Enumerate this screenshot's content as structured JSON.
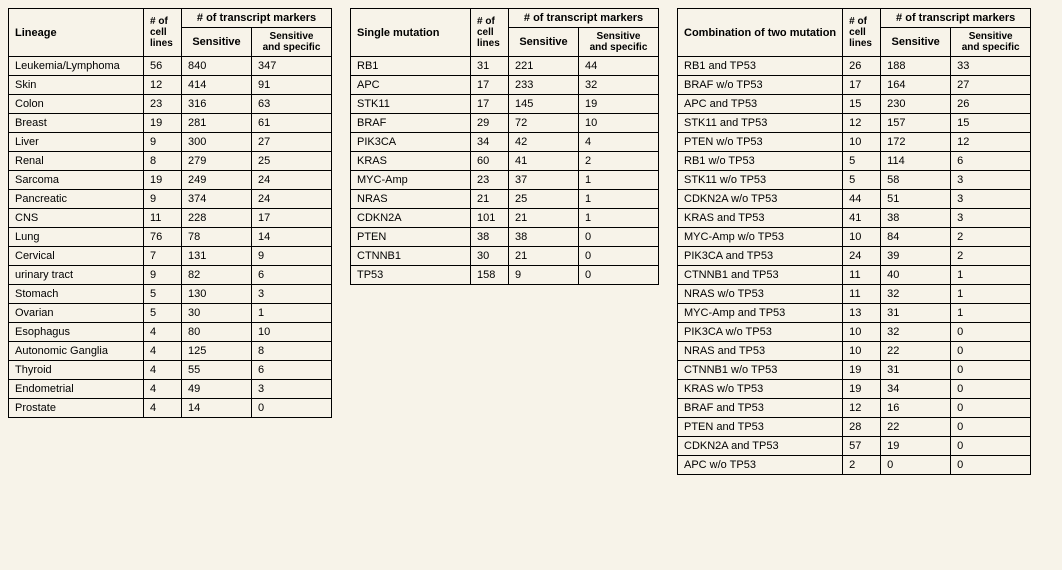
{
  "table1": {
    "header": {
      "col1": "Lineage",
      "col2": "# of\ncell\nlines",
      "markers": "# of transcript markers",
      "sens": "Sensitive",
      "sens_spec": "Sensitive\nand specific"
    },
    "rows": [
      {
        "n": "Leukemia/Lymphoma",
        "c": "56",
        "s": "840",
        "ss": "347"
      },
      {
        "n": "Skin",
        "c": "12",
        "s": "414",
        "ss": "91"
      },
      {
        "n": "Colon",
        "c": "23",
        "s": "316",
        "ss": "63"
      },
      {
        "n": "Breast",
        "c": "19",
        "s": "281",
        "ss": "61"
      },
      {
        "n": "Liver",
        "c": "9",
        "s": "300",
        "ss": "27"
      },
      {
        "n": "Renal",
        "c": "8",
        "s": "279",
        "ss": "25"
      },
      {
        "n": "Sarcoma",
        "c": "19",
        "s": "249",
        "ss": "24"
      },
      {
        "n": "Pancreatic",
        "c": "9",
        "s": "374",
        "ss": "24"
      },
      {
        "n": "CNS",
        "c": "11",
        "s": "228",
        "ss": "17"
      },
      {
        "n": "Lung",
        "c": "76",
        "s": "78",
        "ss": "14"
      },
      {
        "n": "Cervical",
        "c": "7",
        "s": "131",
        "ss": "9"
      },
      {
        "n": "urinary tract",
        "c": "9",
        "s": "82",
        "ss": "6"
      },
      {
        "n": "Stomach",
        "c": "5",
        "s": "130",
        "ss": "3"
      },
      {
        "n": "Ovarian",
        "c": "5",
        "s": "30",
        "ss": "1"
      },
      {
        "n": "Esophagus",
        "c": "4",
        "s": "80",
        "ss": "10"
      },
      {
        "n": "Autonomic Ganglia",
        "c": "4",
        "s": "125",
        "ss": "8"
      },
      {
        "n": "Thyroid",
        "c": "4",
        "s": "55",
        "ss": "6"
      },
      {
        "n": "Endometrial",
        "c": "4",
        "s": "49",
        "ss": "3"
      },
      {
        "n": "Prostate",
        "c": "4",
        "s": "14",
        "ss": "0"
      }
    ]
  },
  "table2": {
    "header": {
      "col1": "Single mutation",
      "col2": "# of\ncell\nlines",
      "markers": "# of transcript markers",
      "sens": "Sensitive",
      "sens_spec": "Sensitive\nand specific"
    },
    "rows": [
      {
        "n": "RB1",
        "c": "31",
        "s": "221",
        "ss": "44"
      },
      {
        "n": "APC",
        "c": "17",
        "s": "233",
        "ss": "32"
      },
      {
        "n": "STK11",
        "c": "17",
        "s": "145",
        "ss": "19"
      },
      {
        "n": "BRAF",
        "c": "29",
        "s": "72",
        "ss": "10"
      },
      {
        "n": "PIK3CA",
        "c": "34",
        "s": "42",
        "ss": "4"
      },
      {
        "n": "KRAS",
        "c": "60",
        "s": "41",
        "ss": "2"
      },
      {
        "n": "MYC-Amp",
        "c": "23",
        "s": "37",
        "ss": "1"
      },
      {
        "n": "NRAS",
        "c": "21",
        "s": "25",
        "ss": "1"
      },
      {
        "n": "CDKN2A",
        "c": "101",
        "s": "21",
        "ss": "1"
      },
      {
        "n": "PTEN",
        "c": "38",
        "s": "38",
        "ss": "0"
      },
      {
        "n": "CTNNB1",
        "c": "30",
        "s": "21",
        "ss": "0"
      },
      {
        "n": "TP53",
        "c": "158",
        "s": "9",
        "ss": "0"
      }
    ]
  },
  "table3": {
    "header": {
      "col1": "Combination of two mutation",
      "col2": "# of\ncell\nlines",
      "markers": "# of transcript markers",
      "sens": "Sensitive",
      "sens_spec": "Sensitive\nand specific"
    },
    "rows": [
      {
        "n": "RB1 and TP53",
        "c": "26",
        "s": "188",
        "ss": "33"
      },
      {
        "n": "BRAF w/o TP53",
        "c": "17",
        "s": "164",
        "ss": "27"
      },
      {
        "n": "APC and TP53",
        "c": "15",
        "s": "230",
        "ss": "26"
      },
      {
        "n": "STK11 and TP53",
        "c": "12",
        "s": "157",
        "ss": "15"
      },
      {
        "n": "PTEN w/o TP53",
        "c": "10",
        "s": "172",
        "ss": "12"
      },
      {
        "n": "RB1 w/o TP53",
        "c": "5",
        "s": "114",
        "ss": "6"
      },
      {
        "n": "STK11 w/o TP53",
        "c": "5",
        "s": "58",
        "ss": "3"
      },
      {
        "n": "CDKN2A w/o TP53",
        "c": "44",
        "s": "51",
        "ss": "3"
      },
      {
        "n": "KRAS and TP53",
        "c": "41",
        "s": "38",
        "ss": "3"
      },
      {
        "n": "MYC-Amp w/o TP53",
        "c": "10",
        "s": "84",
        "ss": "2"
      },
      {
        "n": "PIK3CA and TP53",
        "c": "24",
        "s": "39",
        "ss": "2"
      },
      {
        "n": "CTNNB1 and TP53",
        "c": "11",
        "s": "40",
        "ss": "1"
      },
      {
        "n": "NRAS w/o TP53",
        "c": "11",
        "s": "32",
        "ss": "1"
      },
      {
        "n": "MYC-Amp and TP53",
        "c": "13",
        "s": "31",
        "ss": "1"
      },
      {
        "n": "PIK3CA w/o TP53",
        "c": "10",
        "s": "32",
        "ss": "0"
      },
      {
        "n": "NRAS and TP53",
        "c": "10",
        "s": "22",
        "ss": "0"
      },
      {
        "n": "CTNNB1 w/o TP53",
        "c": "19",
        "s": "31",
        "ss": "0"
      },
      {
        "n": "KRAS w/o TP53",
        "c": "19",
        "s": "34",
        "ss": "0"
      },
      {
        "n": "BRAF and TP53",
        "c": "12",
        "s": "16",
        "ss": "0"
      },
      {
        "n": "PTEN and TP53",
        "c": "28",
        "s": "22",
        "ss": "0"
      },
      {
        "n": "CDKN2A and TP53",
        "c": "57",
        "s": "19",
        "ss": "0"
      },
      {
        "n": "APC w/o TP53",
        "c": "2",
        "s": "0",
        "ss": "0"
      }
    ]
  }
}
